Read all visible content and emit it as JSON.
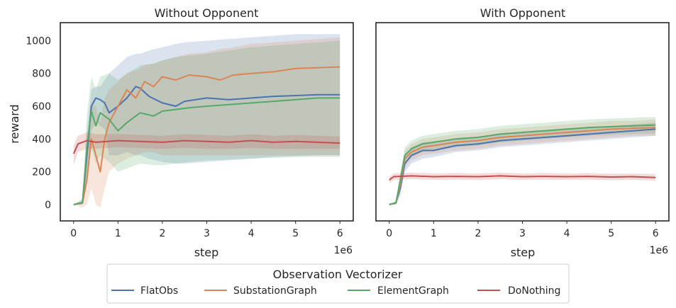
{
  "legend": {
    "title": "Observation Vectorizer",
    "entries": [
      "FlatObs",
      "SubstationGraph",
      "ElementGraph",
      "DoNothing"
    ]
  },
  "colors": {
    "FlatObs": "#4c72b0",
    "SubstationGraph": "#dd8452",
    "ElementGraph": "#55a868",
    "DoNothing": "#c44e52"
  },
  "chart_data": [
    {
      "type": "line",
      "title": "Without Opponent",
      "xlabel": "step",
      "ylabel": "reward",
      "x_offset_label": "1e6",
      "xlim": [
        -0.3,
        6.3
      ],
      "ylim": [
        -100,
        1110
      ],
      "xticks": [
        0,
        1,
        2,
        3,
        4,
        5,
        6
      ],
      "yticks": [
        0,
        200,
        400,
        600,
        800,
        1000
      ],
      "grid": false,
      "series": [
        {
          "name": "FlatObs",
          "x": [
            0,
            0.2,
            0.3,
            0.4,
            0.5,
            0.6,
            0.7,
            0.8,
            1.0,
            1.2,
            1.4,
            1.5,
            1.7,
            2.0,
            2.3,
            2.5,
            3.0,
            3.5,
            4.0,
            4.5,
            5.0,
            5.5,
            6.0
          ],
          "y": [
            0,
            10,
            300,
            600,
            650,
            640,
            620,
            560,
            600,
            650,
            720,
            710,
            660,
            620,
            600,
            630,
            650,
            640,
            650,
            660,
            665,
            670,
            670
          ],
          "band_lower": [
            0,
            0,
            150,
            450,
            500,
            480,
            460,
            300,
            300,
            320,
            300,
            300,
            280,
            260,
            250,
            250,
            260,
            270,
            280,
            290,
            295,
            300,
            300
          ],
          "band_upper": [
            0,
            30,
            450,
            700,
            720,
            720,
            760,
            800,
            850,
            900,
            920,
            920,
            940,
            960,
            980,
            990,
            1000,
            1010,
            1020,
            1030,
            1040,
            1040,
            1040
          ]
        },
        {
          "name": "SubstationGraph",
          "x": [
            0,
            0.2,
            0.3,
            0.4,
            0.5,
            0.6,
            0.7,
            0.8,
            1.0,
            1.2,
            1.4,
            1.6,
            1.8,
            2.0,
            2.3,
            2.6,
            3.0,
            3.3,
            3.6,
            4.0,
            4.5,
            5.0,
            5.5,
            6.0
          ],
          "y": [
            0,
            10,
            150,
            400,
            300,
            200,
            400,
            500,
            600,
            700,
            650,
            750,
            720,
            780,
            760,
            790,
            780,
            760,
            790,
            800,
            810,
            830,
            835,
            840
          ],
          "band_lower": [
            0,
            -20,
            0,
            100,
            0,
            -20,
            100,
            200,
            250,
            280,
            300,
            320,
            320,
            300,
            300,
            300,
            300,
            300,
            300,
            300,
            300,
            300,
            300,
            300
          ],
          "band_upper": [
            0,
            30,
            300,
            600,
            600,
            500,
            650,
            700,
            750,
            800,
            820,
            850,
            860,
            880,
            900,
            920,
            930,
            950,
            960,
            980,
            990,
            1000,
            1010,
            1020
          ]
        },
        {
          "name": "ElementGraph",
          "x": [
            0,
            0.2,
            0.3,
            0.4,
            0.5,
            0.6,
            0.8,
            1.0,
            1.2,
            1.5,
            1.8,
            2.0,
            2.3,
            2.6,
            3.0,
            3.5,
            4.0,
            4.5,
            5.0,
            5.5,
            6.0
          ],
          "y": [
            0,
            10,
            350,
            570,
            480,
            560,
            520,
            450,
            500,
            560,
            540,
            570,
            580,
            590,
            600,
            610,
            620,
            630,
            640,
            650,
            650
          ],
          "band_lower": [
            0,
            0,
            150,
            350,
            250,
            300,
            260,
            200,
            220,
            250,
            240,
            240,
            250,
            260,
            270,
            275,
            280,
            285,
            290,
            290,
            290
          ],
          "band_upper": [
            0,
            30,
            550,
            780,
            700,
            780,
            800,
            760,
            800,
            850,
            860,
            880,
            900,
            910,
            920,
            940,
            960,
            970,
            980,
            990,
            1000
          ]
        },
        {
          "name": "DoNothing",
          "x": [
            0,
            0.1,
            0.3,
            0.5,
            1.0,
            1.5,
            2.0,
            2.5,
            3.0,
            3.5,
            4.0,
            4.5,
            5.0,
            5.5,
            6.0
          ],
          "y": [
            310,
            370,
            390,
            380,
            390,
            385,
            380,
            390,
            385,
            380,
            390,
            380,
            385,
            380,
            375
          ],
          "band_lower": [
            240,
            320,
            340,
            340,
            350,
            345,
            340,
            345,
            340,
            340,
            345,
            340,
            340,
            340,
            340
          ],
          "band_upper": [
            360,
            420,
            440,
            430,
            430,
            425,
            420,
            430,
            425,
            420,
            430,
            420,
            425,
            420,
            415
          ]
        }
      ]
    },
    {
      "type": "line",
      "title": "With Opponent",
      "xlabel": "step",
      "ylabel": "",
      "x_offset_label": "1e6",
      "xlim": [
        -0.3,
        6.3
      ],
      "ylim": [
        -100,
        1110
      ],
      "xticks": [
        0,
        1,
        2,
        3,
        4,
        5,
        6
      ],
      "yticks": [
        0,
        200,
        400,
        600,
        800,
        1000
      ],
      "grid": false,
      "series": [
        {
          "name": "FlatObs",
          "x": [
            0,
            0.15,
            0.25,
            0.35,
            0.5,
            0.75,
            1.0,
            1.5,
            2.0,
            2.5,
            3.0,
            3.5,
            4.0,
            4.5,
            5.0,
            5.5,
            6.0
          ],
          "y": [
            0,
            10,
            100,
            250,
            300,
            330,
            330,
            360,
            370,
            390,
            400,
            410,
            420,
            430,
            440,
            450,
            460
          ],
          "band_lower": [
            0,
            0,
            60,
            200,
            250,
            280,
            290,
            320,
            330,
            350,
            360,
            370,
            380,
            390,
            400,
            410,
            420
          ],
          "band_upper": [
            0,
            20,
            140,
            300,
            350,
            380,
            380,
            400,
            410,
            430,
            440,
            450,
            460,
            470,
            480,
            490,
            500
          ]
        },
        {
          "name": "SubstationGraph",
          "x": [
            0,
            0.15,
            0.25,
            0.35,
            0.5,
            0.75,
            1.0,
            1.5,
            2.0,
            2.5,
            3.0,
            3.5,
            4.0,
            4.5,
            5.0,
            5.5,
            6.0
          ],
          "y": [
            0,
            10,
            120,
            280,
            320,
            350,
            360,
            380,
            390,
            410,
            420,
            430,
            440,
            450,
            460,
            465,
            470
          ],
          "band_lower": [
            0,
            0,
            80,
            230,
            270,
            300,
            310,
            330,
            340,
            360,
            370,
            380,
            390,
            400,
            410,
            420,
            420
          ],
          "band_upper": [
            0,
            20,
            160,
            330,
            370,
            400,
            410,
            430,
            440,
            460,
            470,
            480,
            490,
            500,
            510,
            510,
            520
          ]
        },
        {
          "name": "ElementGraph",
          "x": [
            0,
            0.15,
            0.25,
            0.35,
            0.5,
            0.75,
            1.0,
            1.5,
            2.0,
            2.5,
            3.0,
            3.5,
            4.0,
            4.5,
            5.0,
            5.5,
            6.0
          ],
          "y": [
            0,
            10,
            150,
            300,
            340,
            370,
            380,
            400,
            410,
            430,
            440,
            450,
            460,
            470,
            475,
            480,
            485
          ],
          "band_lower": [
            0,
            0,
            100,
            250,
            290,
            320,
            330,
            350,
            360,
            380,
            390,
            400,
            410,
            420,
            425,
            430,
            435
          ],
          "band_upper": [
            0,
            20,
            200,
            350,
            390,
            420,
            430,
            450,
            460,
            480,
            490,
            500,
            510,
            520,
            525,
            530,
            535
          ]
        },
        {
          "name": "DoNothing",
          "x": [
            0,
            0.1,
            0.5,
            1.0,
            1.5,
            2.0,
            2.5,
            3.0,
            3.5,
            4.0,
            4.5,
            5.0,
            5.5,
            6.0
          ],
          "y": [
            150,
            170,
            175,
            170,
            172,
            170,
            175,
            170,
            172,
            170,
            172,
            168,
            170,
            165
          ],
          "band_lower": [
            130,
            150,
            155,
            150,
            152,
            150,
            155,
            150,
            152,
            150,
            152,
            148,
            150,
            145
          ],
          "band_upper": [
            170,
            190,
            195,
            190,
            192,
            190,
            195,
            190,
            192,
            190,
            192,
            188,
            190,
            185
          ]
        }
      ]
    }
  ]
}
